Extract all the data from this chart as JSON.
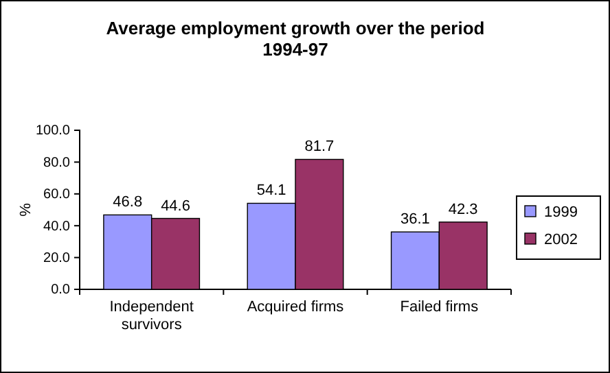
{
  "chart_data": {
    "type": "bar",
    "title": "Average employment growth over the period 1994-97",
    "ylabel": "%",
    "categories": [
      "Independent survivors",
      "Acquired firms",
      "Failed firms"
    ],
    "series": [
      {
        "name": "1999",
        "color": "#9999ff",
        "values": [
          46.8,
          54.1,
          36.1
        ]
      },
      {
        "name": "2002",
        "color": "#993366",
        "values": [
          44.6,
          81.7,
          42.3
        ]
      }
    ],
    "ylim": [
      0,
      100
    ],
    "yticks": [
      {
        "value": 0,
        "label": "0.0"
      },
      {
        "value": 20,
        "label": "20.0"
      },
      {
        "value": 40,
        "label": "40.0"
      },
      {
        "value": 60,
        "label": "60.0"
      },
      {
        "value": 80,
        "label": "80.0"
      },
      {
        "value": 100,
        "label": "100.0"
      }
    ],
    "data_labels": true,
    "legend": "right",
    "grid": false
  }
}
